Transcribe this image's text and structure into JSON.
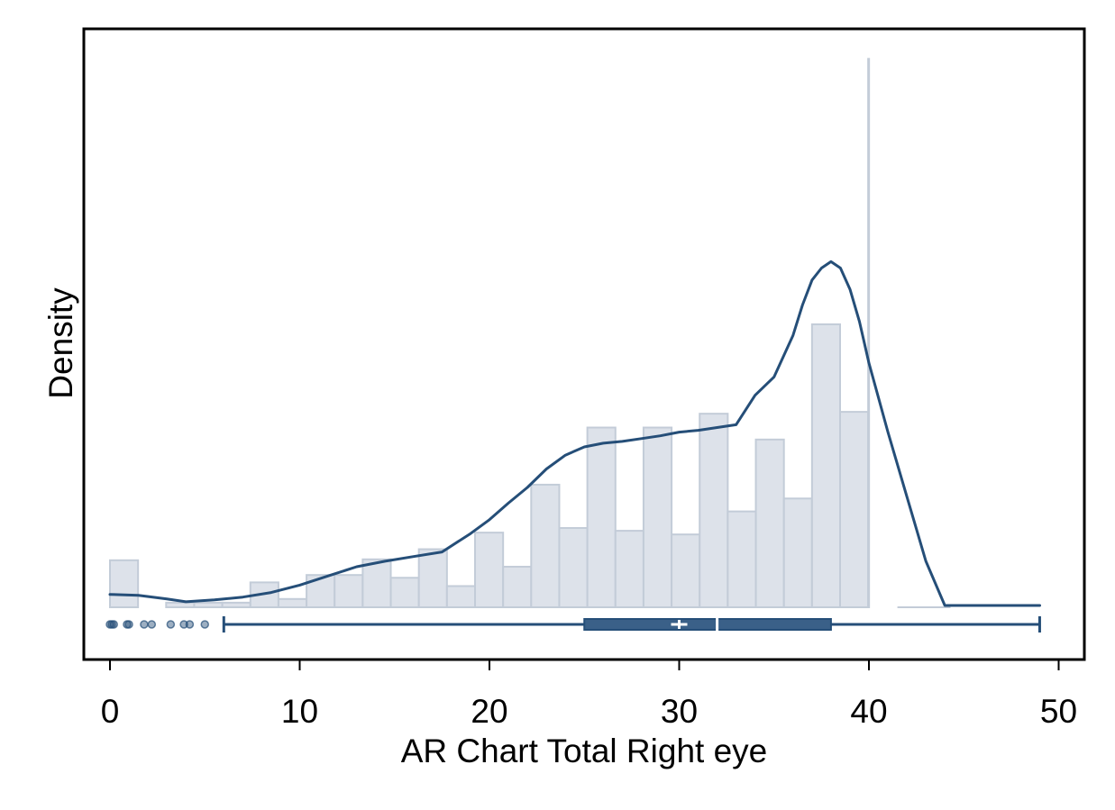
{
  "chart_data": {
    "type": "histogram",
    "xlabel": "AR Chart Total Right eye",
    "ylabel": "Density",
    "xlim": [
      -1,
      51
    ],
    "x_ticks": [
      0,
      10,
      20,
      30,
      40,
      50
    ],
    "y_ticks_shown": false,
    "grid": false,
    "histogram": {
      "bin_width": 1.48,
      "bins": [
        {
          "x0": 0.0,
          "x1": 1.48,
          "density": 0.51
        },
        {
          "x0": 1.48,
          "x1": 2.96,
          "density": 0.0
        },
        {
          "x0": 2.96,
          "x1": 4.44,
          "density": 0.05
        },
        {
          "x0": 4.44,
          "x1": 5.92,
          "density": 0.05
        },
        {
          "x0": 5.92,
          "x1": 7.4,
          "density": 0.05
        },
        {
          "x0": 7.4,
          "x1": 8.88,
          "density": 0.27
        },
        {
          "x0": 8.88,
          "x1": 10.36,
          "density": 0.09
        },
        {
          "x0": 10.36,
          "x1": 11.84,
          "density": 0.35
        },
        {
          "x0": 11.84,
          "x1": 13.32,
          "density": 0.35
        },
        {
          "x0": 13.32,
          "x1": 14.8,
          "density": 0.52
        },
        {
          "x0": 14.8,
          "x1": 16.28,
          "density": 0.32
        },
        {
          "x0": 16.28,
          "x1": 17.76,
          "density": 0.63
        },
        {
          "x0": 17.76,
          "x1": 19.24,
          "density": 0.23
        },
        {
          "x0": 19.24,
          "x1": 20.72,
          "density": 0.81
        },
        {
          "x0": 20.72,
          "x1": 22.2,
          "density": 0.44
        },
        {
          "x0": 22.2,
          "x1": 23.68,
          "density": 1.33
        },
        {
          "x0": 23.68,
          "x1": 25.16,
          "density": 0.86
        },
        {
          "x0": 25.16,
          "x1": 26.64,
          "density": 1.95
        },
        {
          "x0": 26.64,
          "x1": 28.12,
          "density": 0.83
        },
        {
          "x0": 28.12,
          "x1": 29.6,
          "density": 1.95
        },
        {
          "x0": 29.6,
          "x1": 31.08,
          "density": 0.79
        },
        {
          "x0": 31.08,
          "x1": 32.56,
          "density": 2.1
        },
        {
          "x0": 32.56,
          "x1": 34.04,
          "density": 1.04
        },
        {
          "x0": 34.04,
          "x1": 35.52,
          "density": 1.82
        },
        {
          "x0": 35.52,
          "x1": 37.0,
          "density": 1.18
        },
        {
          "x0": 37.0,
          "x1": 38.48,
          "density": 3.07
        },
        {
          "x0": 38.48,
          "x1": 39.96,
          "density": 2.12
        },
        {
          "x0": 39.96,
          "x1": 40.0,
          "density": 5.95
        }
      ]
    },
    "kde": {
      "x": [
        0.0,
        1.5,
        3.0,
        4.0,
        5.5,
        7.0,
        8.5,
        10.0,
        11.5,
        13.0,
        14.5,
        16.0,
        17.5,
        19.0,
        20.0,
        21.0,
        22.0,
        23.0,
        24.0,
        25.0,
        26.0,
        27.0,
        28.0,
        29.0,
        30.0,
        31.0,
        32.0,
        33.0,
        34.0,
        35.0,
        36.0,
        36.5,
        37.0,
        37.5,
        38.0,
        38.5,
        39.0,
        39.5,
        40.0,
        41.0,
        42.0,
        43.0,
        44.0,
        45.0,
        47.0,
        49.0
      ],
      "y": [
        0.14,
        0.13,
        0.09,
        0.06,
        0.08,
        0.11,
        0.16,
        0.24,
        0.34,
        0.44,
        0.5,
        0.55,
        0.6,
        0.8,
        0.95,
        1.13,
        1.3,
        1.5,
        1.65,
        1.74,
        1.78,
        1.8,
        1.83,
        1.86,
        1.9,
        1.92,
        1.95,
        1.98,
        2.3,
        2.5,
        2.95,
        3.28,
        3.55,
        3.68,
        3.75,
        3.68,
        3.45,
        3.1,
        2.65,
        1.9,
        1.2,
        0.5,
        0.02,
        0.02,
        0.02,
        0.02
      ]
    },
    "boxplot": {
      "whisker_low": 6,
      "q1": 25,
      "median": 32,
      "mean": 30,
      "q3": 38,
      "whisker_high": 49,
      "outliers": [
        0,
        0.1,
        0.2,
        0.9,
        1.0,
        1.8,
        2.2,
        3.2,
        3.9,
        4.2,
        5.0
      ]
    },
    "colors": {
      "bar_fill": "#dde2ea",
      "bar_stroke": "#c3ccd8",
      "line": "#254e78",
      "box": "#3a6088",
      "outlier": "#254e78"
    }
  }
}
